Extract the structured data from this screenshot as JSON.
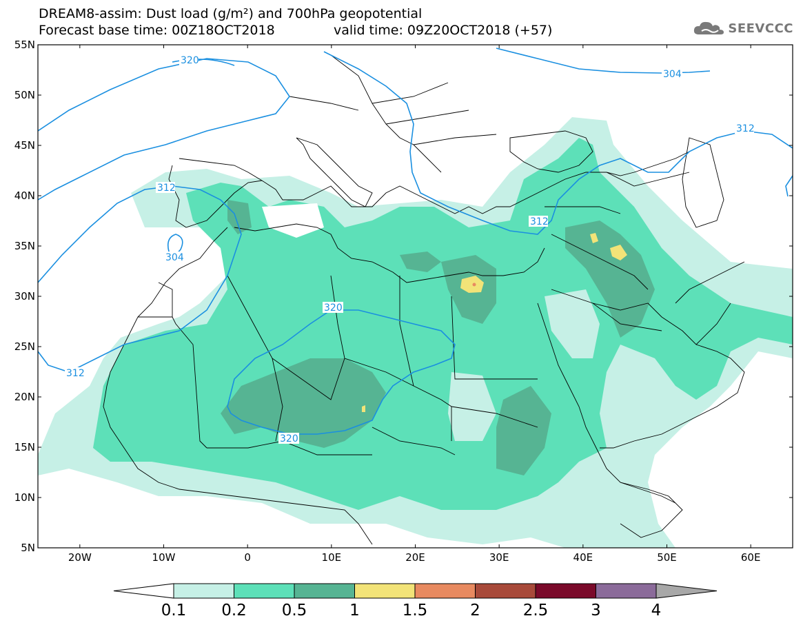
{
  "header": {
    "title_line1": "DREAM8-assim: Dust load (g/m²) and 700hPa geopotential",
    "forecast_base": "Forecast base time: 00Z18OCT2018",
    "valid_time": "valid time: 09Z20OCT2018 (+57)"
  },
  "logo": {
    "text": "SEEVCCC",
    "icon": "cloud-icon",
    "color": "#777777"
  },
  "map": {
    "lat_labels": [
      "55N",
      "50N",
      "45N",
      "40N",
      "35N",
      "30N",
      "25N",
      "20N",
      "15N",
      "10N",
      "5N"
    ],
    "lon_labels": [
      "20W",
      "10W",
      "0",
      "10E",
      "20E",
      "30E",
      "40E",
      "50E",
      "60E"
    ],
    "land_color": "#ffffff",
    "border_color": "#000000",
    "contour_color": "#1a8fe0",
    "contour_labels": [
      "320",
      "304",
      "312",
      "312",
      "304",
      "312",
      "320",
      "312",
      "320"
    ]
  },
  "colorbar": {
    "levels": [
      "0.1",
      "0.2",
      "0.5",
      "1",
      "1.5",
      "2",
      "2.5",
      "3",
      "4"
    ],
    "colors": [
      "#c6f0e6",
      "#5de0b8",
      "#56b493",
      "#f2e378",
      "#e88a60",
      "#a84a3a",
      "#7a0a2a",
      "#8b6b9a"
    ],
    "below_color": "#ffffff",
    "above_color": "#a8a8a8"
  }
}
